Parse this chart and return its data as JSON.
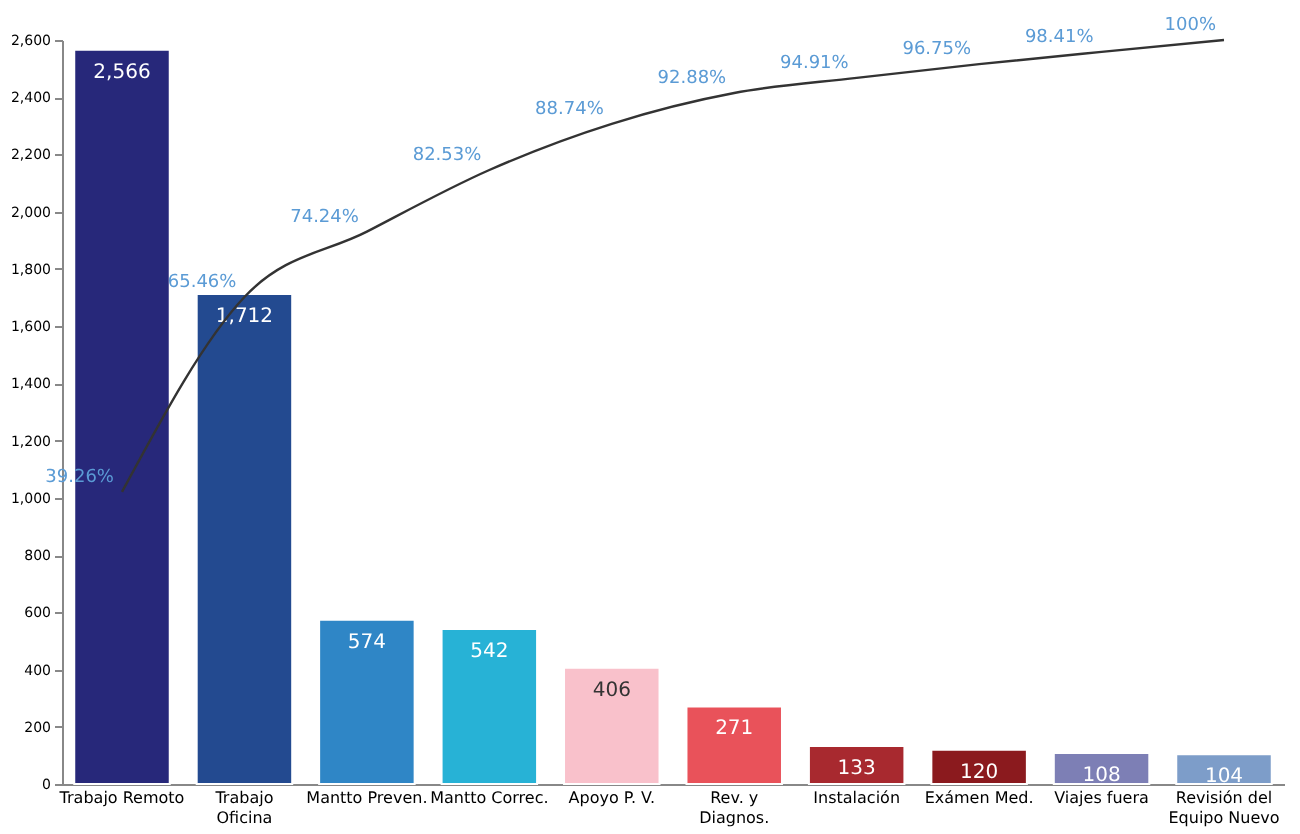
{
  "chart_data": {
    "type": "bar",
    "categories": [
      "Trabajo Remoto",
      "Trabajo Oficina",
      "Mantto Preven.",
      "Mantto Correc.",
      "Apoyo P. V.",
      "Rev. y Diagnos.",
      "Instalación",
      "Exámen Med.",
      "Viajes fuera",
      "Revisión del Equipo Nuevo"
    ],
    "series": [
      {
        "values": [
          2566,
          1712,
          574,
          542,
          406,
          271,
          133,
          120,
          108,
          104
        ],
        "colors": [
          "#27287a",
          "#234a90",
          "#2f86c6",
          "#27b2d6",
          "#f9c1cb",
          "#e9525a",
          "#a8292f",
          "#8b1a1e",
          "#7d7fb5",
          "#7d9dc9"
        ],
        "value_labels": [
          "2,566",
          "1,712",
          "574",
          "542",
          "406",
          "271",
          "133",
          "120",
          "108",
          "104"
        ]
      },
      {
        "type": "line",
        "axis": "y2",
        "color": "#333333",
        "values": [
          39.26,
          65.46,
          74.24,
          82.53,
          88.74,
          92.88,
          94.91,
          96.75,
          98.41,
          100
        ],
        "value_labels": [
          "39.26%",
          "65.46%",
          "74.24%",
          "82.53%",
          "88.74%",
          "92.88%",
          "94.91%",
          "96.75%",
          "98.41%",
          "100%"
        ]
      }
    ],
    "ylim": [
      0,
      2600
    ],
    "yticks": [
      0,
      200,
      400,
      600,
      800,
      {
        "value": 1000,
        "label": "1,000"
      },
      {
        "value": 1200,
        "label": "1,200"
      },
      {
        "value": 1400,
        "label": "1,400"
      },
      {
        "value": 1600,
        "label": "1,600"
      },
      {
        "value": 1800,
        "label": "1,800"
      },
      {
        "value": 2000,
        "label": "2,000"
      },
      {
        "value": 2200,
        "label": "2,200"
      },
      {
        "value": 2400,
        "label": "2,400"
      },
      {
        "value": 2600,
        "label": "2,600"
      }
    ],
    "y2lim": [
      0,
      100
    ],
    "tick_labels": "xy",
    "grid": false,
    "legend": false,
    "marker": "none"
  }
}
